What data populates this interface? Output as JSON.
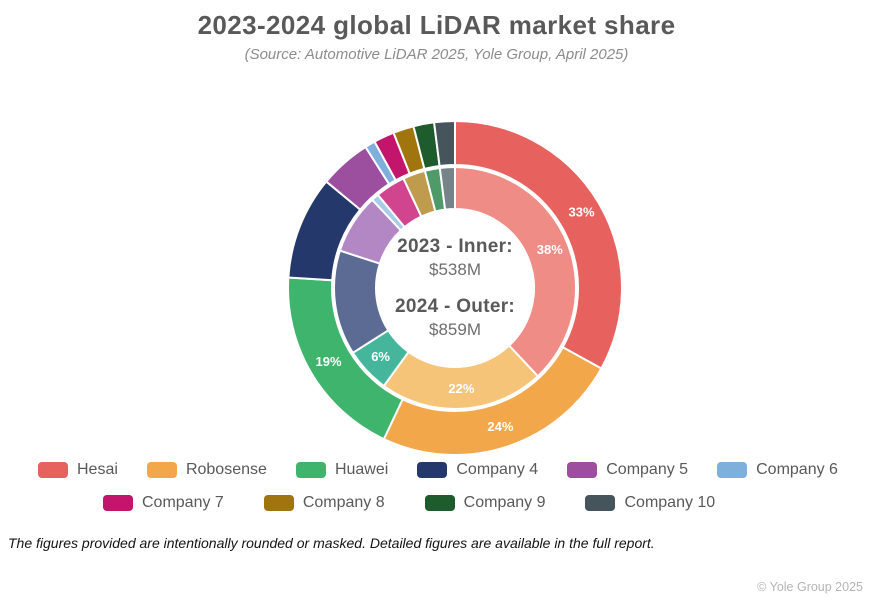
{
  "title": "2023-2024 global LiDAR market share",
  "subtitle": "(Source: Automotive LiDAR 2025, Yole Group, April 2025)",
  "center": {
    "inner_label": "2023 - Inner:",
    "inner_value": "$538M",
    "outer_label": "2024 - Outer:",
    "outer_value": "$859M"
  },
  "chart_data": {
    "type": "pie",
    "variant": "double-ring-donut",
    "title": "2023-2024 global LiDAR market share",
    "categories": [
      "Hesai",
      "Robosense",
      "Huawei",
      "Company 4",
      "Company 5",
      "Company 6",
      "Company 7",
      "Company 8",
      "Company 9",
      "Company 10"
    ],
    "legend_position": "bottom",
    "start_angle_deg": 0,
    "direction": "clockwise",
    "series": [
      {
        "name": "2023 (inner ring)",
        "total_label": "$538M",
        "values": [
          38,
          22,
          6,
          14,
          8,
          1,
          4,
          3,
          2,
          2
        ],
        "labels": [
          "38%",
          "22%",
          "6%",
          "",
          "",
          "",
          "",
          "",
          "",
          ""
        ],
        "colors": [
          "#ef8c86",
          "#f6c478",
          "#45b69c",
          "#5b6b94",
          "#b287c4",
          "#a8cbe8",
          "#d1458e",
          "#bf9b4d",
          "#4e9a68",
          "#76848a"
        ]
      },
      {
        "name": "2024 (outer ring)",
        "total_label": "$859M",
        "values": [
          33,
          24,
          19,
          10,
          5,
          1,
          2,
          2,
          2,
          2
        ],
        "labels": [
          "33%",
          "24%",
          "19%",
          "",
          "",
          "",
          "",
          "",
          "",
          ""
        ],
        "colors": [
          "#e7625e",
          "#f3a74b",
          "#3fb46c",
          "#24386b",
          "#9c4f9f",
          "#7fb0dc",
          "#c2156b",
          "#a1750e",
          "#1e5c2e",
          "#46555c"
        ]
      }
    ]
  },
  "legend": {
    "rows": [
      [
        {
          "label": "Hesai",
          "color": "#e7625e"
        },
        {
          "label": "Robosense",
          "color": "#f3a74b"
        },
        {
          "label": "Huawei",
          "color": "#3fb46c"
        },
        {
          "label": "Company 4",
          "color": "#24386b"
        },
        {
          "label": "Company 5",
          "color": "#9c4f9f"
        },
        {
          "label": "Company 6",
          "color": "#7fb0dc"
        }
      ],
      [
        {
          "label": "Company 7",
          "color": "#c2156b"
        },
        {
          "label": "Company 8",
          "color": "#a1750e"
        },
        {
          "label": "Company 9",
          "color": "#1e5c2e"
        },
        {
          "label": "Company 10",
          "color": "#46555c"
        }
      ]
    ]
  },
  "footnote": "The figures provided are intentionally rounded or masked. Detailed figures are available in the full report.",
  "copyright": "© Yole Group 2025"
}
